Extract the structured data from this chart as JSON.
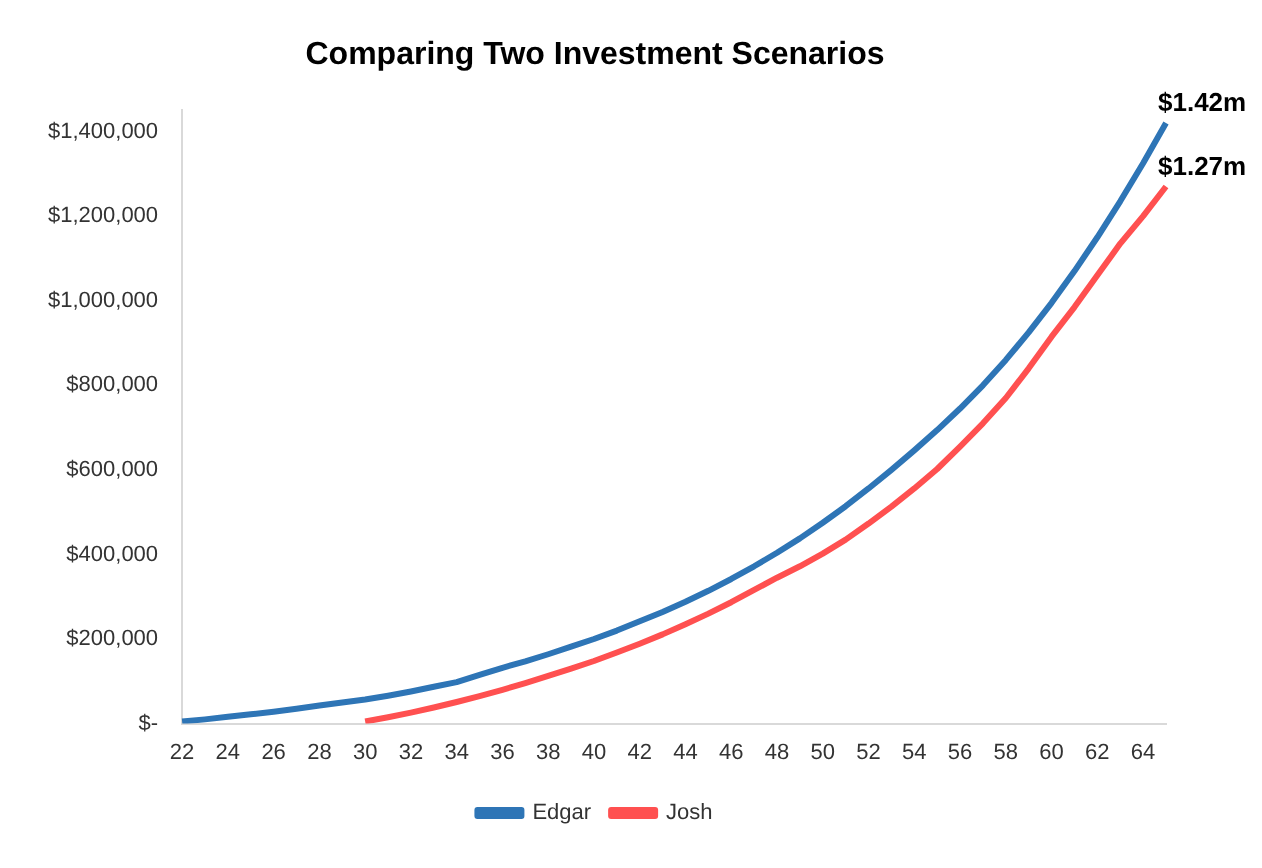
{
  "chart_data": {
    "type": "line",
    "title": "Comparing Two Investment Scenarios",
    "categories": [
      "22",
      null,
      "24",
      null,
      "26",
      null,
      "28",
      null,
      "30",
      null,
      "32",
      null,
      "34",
      null,
      "36",
      null,
      "38",
      null,
      "40",
      null,
      "42",
      null,
      "44",
      null,
      "46",
      null,
      "48",
      null,
      "50",
      null,
      "52",
      null,
      "54",
      null,
      "56",
      null,
      "58",
      null,
      "60",
      null,
      "62",
      null,
      "64",
      null
    ],
    "series": [
      {
        "name": "Edgar",
        "color": "#2e75b6",
        "values": [
          5000,
          10000,
          16000,
          22000,
          28000,
          35000,
          43000,
          50000,
          57000,
          66000,
          76000,
          87000,
          98000,
          115000,
          132000,
          147000,
          164000,
          182000,
          200000,
          220000,
          242000,
          264000,
          288000,
          314000,
          342000,
          372000,
          404000,
          438000,
          475000,
          514000,
          556000,
          600000,
          646000,
          694000,
          745000,
          800000,
          860000,
          925000,
          995000,
          1070000,
          1150000,
          1235000,
          1325000,
          1420000
        ]
      },
      {
        "name": "Josh",
        "color": "#ff5050",
        "values": [
          null,
          null,
          null,
          null,
          null,
          null,
          null,
          null,
          5000,
          15000,
          26000,
          38000,
          51000,
          65000,
          80000,
          96000,
          113000,
          130000,
          148000,
          168000,
          189000,
          211000,
          235000,
          260000,
          287000,
          316000,
          345000,
          372000,
          402000,
          435000,
          473000,
          513000,
          556000,
          602000,
          655000,
          710000,
          770000,
          840000,
          915000,
          985000,
          1060000,
          1135000,
          1200000,
          1270000
        ]
      }
    ],
    "ylim": [
      0,
      1450000
    ],
    "yticks": [
      {
        "value": 0,
        "label": "$-"
      },
      {
        "value": 200000,
        "label": "$200,000"
      },
      {
        "value": 400000,
        "label": "$400,000"
      },
      {
        "value": 600000,
        "label": "$600,000"
      },
      {
        "value": 800000,
        "label": "$800,000"
      },
      {
        "value": 1000000,
        "label": "$1,000,000"
      },
      {
        "value": 1200000,
        "label": "$1,200,000"
      },
      {
        "value": 1400000,
        "label": "$1,400,000"
      }
    ],
    "annotations": [
      "$1.42m",
      "$1.27m"
    ],
    "grid": false,
    "legend": "bottom",
    "marker": "none",
    "line_style": "solid"
  }
}
